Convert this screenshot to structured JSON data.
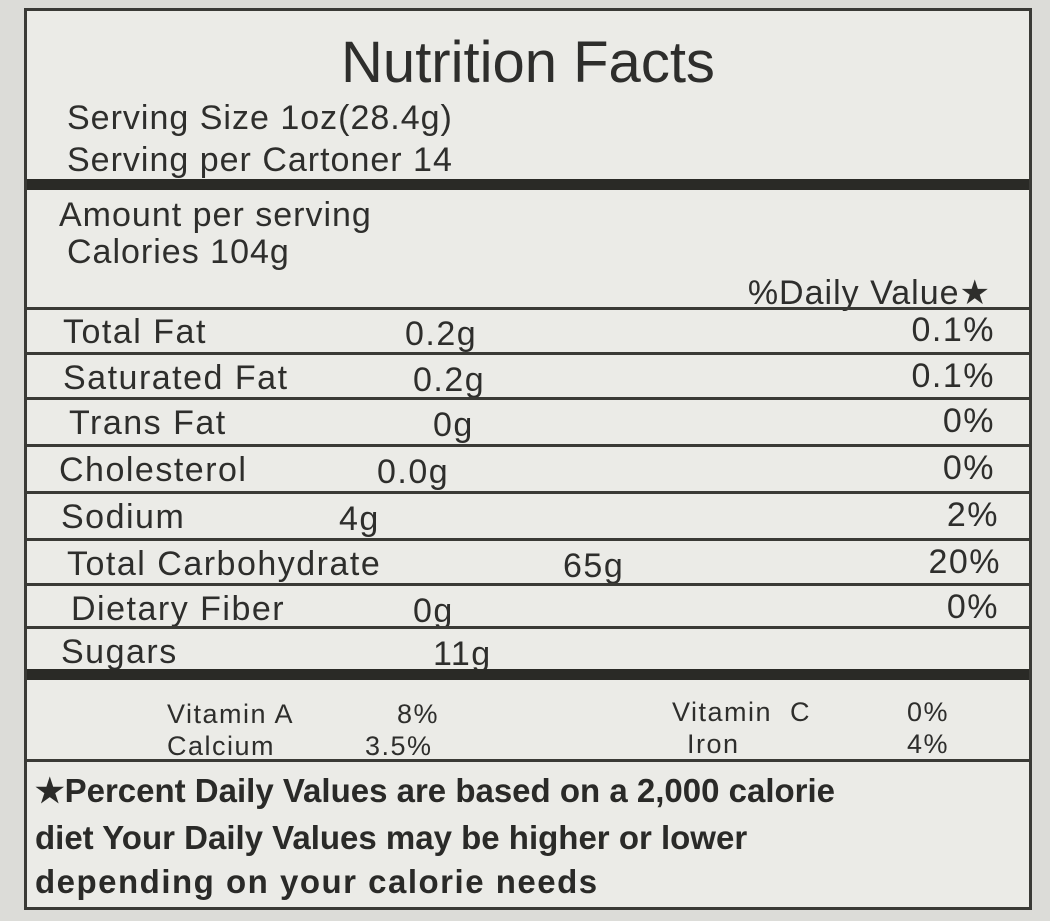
{
  "title": "Nutrition Facts",
  "serving_size": "Serving Size 1oz(28.4g)",
  "servings_per_container": "Serving per Cartoner 14",
  "amount_per_serving": "Amount per serving",
  "calories": "Calories 104g",
  "daily_value_header": "%Daily Value★",
  "nutrients": [
    {
      "name": "Total Fat",
      "amount": "0.2g",
      "dv": "0.1%"
    },
    {
      "name": "Saturated Fat",
      "amount": "0.2g",
      "dv": "0.1%"
    },
    {
      "name": "Trans Fat",
      "amount": "0g",
      "dv": "0%"
    },
    {
      "name": "Cholesterol",
      "amount": "0.0g",
      "dv": "0%"
    },
    {
      "name": "Sodium",
      "amount": "4g",
      "dv": "2%"
    },
    {
      "name": "Total Carbohydrate",
      "amount": "65g",
      "dv": "20%"
    },
    {
      "name": "Dietary Fiber",
      "amount": "0g",
      "dv": "0%"
    },
    {
      "name": "Sugars",
      "amount": "11g",
      "dv": ""
    }
  ],
  "vitamins": [
    {
      "name": "Vitamin A",
      "value": "8%"
    },
    {
      "name": "Vitamin  C",
      "value": "0%"
    },
    {
      "name": "Calcium",
      "value": "3.5%"
    },
    {
      "name": "Iron",
      "value": "4%"
    }
  ],
  "footnote": [
    "★Percent Daily Values are based on a 2,000 calorie",
    "diet Your Daily Values may be higher or lower",
    "depending on your calorie needs"
  ]
}
